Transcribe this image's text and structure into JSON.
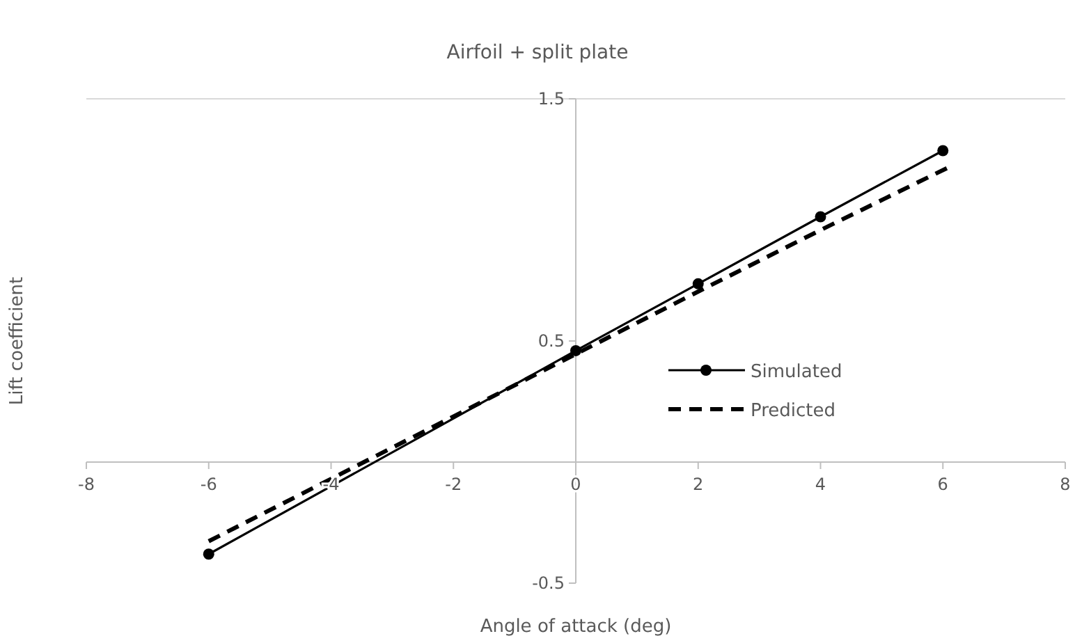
{
  "chart_data": {
    "type": "line",
    "title": "Airfoil + split plate",
    "xlabel": "Angle of attack (deg)",
    "ylabel": "Lift coefficient",
    "xlim": [
      -8,
      8
    ],
    "xticks": [
      -8,
      -6,
      -4,
      -2,
      0,
      2,
      4,
      6,
      8
    ],
    "ylim": [
      -0.5,
      1.5
    ],
    "yticks": [
      -0.5,
      0.5,
      1.5
    ],
    "grid": false,
    "legend": "right",
    "series": [
      {
        "name": "Simulated",
        "color": "#000000",
        "x": [
          -6,
          0,
          2,
          4,
          6
        ],
        "values": [
          -0.38,
          0.46,
          0.736,
          1.013,
          1.286
        ],
        "marker": "circle",
        "line_style": "solid"
      },
      {
        "name": "Predicted",
        "color": "#000000",
        "x": [
          -6,
          0,
          2,
          4,
          6.1
        ],
        "values": [
          -0.327,
          0.446,
          0.704,
          0.958,
          1.218
        ],
        "marker": "none",
        "line_style": "dashed"
      }
    ]
  }
}
